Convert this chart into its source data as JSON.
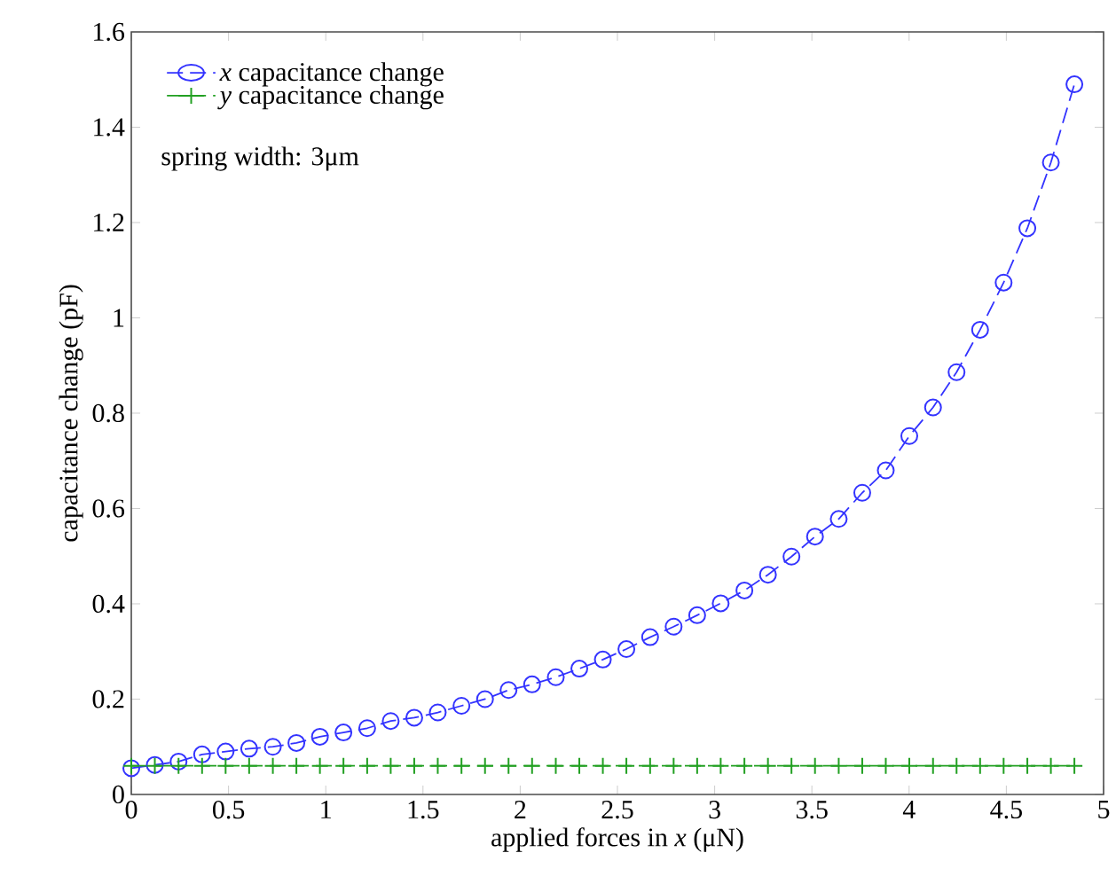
{
  "chart_data": {
    "type": "line",
    "xlabel": "applied forces in *x* (μN)",
    "ylabel": "capacitance change (pF)",
    "annotations": [
      "spring width: 3μm"
    ],
    "x": [
      0,
      0.121,
      0.243,
      0.364,
      0.485,
      0.606,
      0.728,
      0.849,
      0.97,
      1.091,
      1.213,
      1.334,
      1.455,
      1.576,
      1.698,
      1.819,
      1.94,
      2.061,
      2.183,
      2.304,
      2.425,
      2.546,
      2.668,
      2.789,
      2.91,
      3.031,
      3.153,
      3.274,
      3.395,
      3.516,
      3.638,
      3.759,
      3.88,
      4.001,
      4.123,
      4.244,
      4.365,
      4.486,
      4.608,
      4.729,
      4.85
    ],
    "series": [
      {
        "name": "*x* capacitance change",
        "color": "#3333ff",
        "marker": "circle",
        "line_style": "dashed",
        "values": [
          0.055,
          0.062,
          0.069,
          0.084,
          0.09,
          0.096,
          0.1,
          0.108,
          0.121,
          0.13,
          0.139,
          0.154,
          0.161,
          0.172,
          0.186,
          0.2,
          0.219,
          0.231,
          0.246,
          0.264,
          0.283,
          0.305,
          0.33,
          0.352,
          0.376,
          0.401,
          0.428,
          0.461,
          0.499,
          0.541,
          0.578,
          0.633,
          0.68,
          0.752,
          0.812,
          0.886,
          0.975,
          1.074,
          1.188,
          1.326,
          1.49
        ]
      },
      {
        "name": "*y* capacitance change",
        "color": "#22a022",
        "marker": "cross",
        "line_style": "dashed",
        "values": [
          0.06,
          0.06,
          0.06,
          0.06,
          0.06,
          0.06,
          0.06,
          0.06,
          0.06,
          0.06,
          0.06,
          0.06,
          0.06,
          0.06,
          0.06,
          0.06,
          0.06,
          0.06,
          0.06,
          0.06,
          0.06,
          0.06,
          0.06,
          0.06,
          0.06,
          0.06,
          0.06,
          0.06,
          0.06,
          0.06,
          0.06,
          0.06,
          0.06,
          0.06,
          0.06,
          0.06,
          0.06,
          0.06,
          0.06,
          0.06,
          0.06
        ]
      }
    ],
    "xlim": [
      0,
      5
    ],
    "ylim": [
      0,
      1.6
    ],
    "xticks": [
      0,
      0.5,
      1,
      1.5,
      2,
      2.5,
      3,
      3.5,
      4,
      4.5,
      5
    ],
    "yticks": [
      0,
      0.2,
      0.4,
      0.6,
      0.8,
      1,
      1.2,
      1.4,
      1.6
    ],
    "grid": false,
    "legend": "top left"
  }
}
